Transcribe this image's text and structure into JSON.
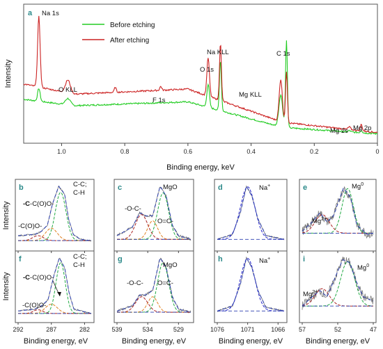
{
  "chart_data": [
    {
      "panel": "a",
      "type": "line",
      "xlabel": "Binding energy, keV",
      "ylabel": "Intensity",
      "xlim": [
        1.12,
        0.0
      ],
      "ylim": [
        0,
        1.0
      ],
      "x_ticks": [
        "1.0",
        "0.8",
        "0.6",
        "0.4",
        "0.2",
        "0"
      ],
      "legend": {
        "placement": "top-left",
        "entries": [
          "Before etching",
          "After etching"
        ]
      },
      "series": [
        {
          "name": "Before etching",
          "color": "#22cc22",
          "baseline": [
            [
              1.12,
              0.3
            ],
            [
              0.96,
              0.25
            ],
            [
              0.6,
              0.28
            ],
            [
              0.3,
              0.08
            ],
            [
              0.0,
              0.03
            ]
          ],
          "peaks": [
            {
              "x": 1.072,
              "h": 0.1,
              "w": 0.004
            },
            {
              "x": 0.98,
              "h": 0.05,
              "w": 0.008
            },
            {
              "x": 0.536,
              "h": 0.18,
              "w": 0.004
            },
            {
              "x": 0.497,
              "h": 0.4,
              "w": 0.003
            },
            {
              "x": 0.306,
              "h": 0.25,
              "w": 0.006
            },
            {
              "x": 0.288,
              "h": 0.68,
              "w": 0.003
            },
            {
              "x": 0.089,
              "h": 0.01,
              "w": 0.004
            },
            {
              "x": 0.051,
              "h": 0.02,
              "w": 0.003
            }
          ]
        },
        {
          "name": "After etching",
          "color": "#cc2222",
          "baseline": [
            [
              1.12,
              0.42
            ],
            [
              0.96,
              0.34
            ],
            [
              0.6,
              0.38
            ],
            [
              0.3,
              0.12
            ],
            [
              0.0,
              0.04
            ]
          ],
          "peaks": [
            {
              "x": 1.072,
              "h": 0.55,
              "w": 0.004
            },
            {
              "x": 0.98,
              "h": 0.1,
              "w": 0.008
            },
            {
              "x": 0.83,
              "h": 0.04,
              "w": 0.003
            },
            {
              "x": 0.686,
              "h": 0.03,
              "w": 0.003
            },
            {
              "x": 0.536,
              "h": 0.3,
              "w": 0.004
            },
            {
              "x": 0.497,
              "h": 0.45,
              "w": 0.003
            },
            {
              "x": 0.306,
              "h": 0.33,
              "w": 0.005
            },
            {
              "x": 0.288,
              "h": 0.4,
              "w": 0.003
            },
            {
              "x": 0.089,
              "h": 0.02,
              "w": 0.004
            },
            {
              "x": 0.051,
              "h": 0.05,
              "w": 0.003
            }
          ]
        }
      ],
      "annotations": [
        "Na 1s",
        "O KLL",
        "F 1s",
        "O 1s",
        "Na KLL",
        "C 1s",
        "Mg KLL",
        "Mg 2s",
        "Mg 2p"
      ]
    },
    {
      "panel": "b",
      "type": "line",
      "xlim": [
        292,
        281
      ],
      "ylim": [
        0,
        1
      ],
      "envelope": [
        [
          292,
          0.18
        ],
        [
          289.5,
          0.2
        ],
        [
          288.5,
          0.25
        ],
        [
          287.6,
          0.35
        ],
        [
          286.8,
          0.7
        ],
        [
          285.9,
          0.98
        ],
        [
          285.0,
          0.85
        ],
        [
          284.4,
          0.45
        ],
        [
          283.7,
          0.2
        ],
        [
          282.6,
          0.12
        ],
        [
          281,
          0.1
        ]
      ],
      "components": [
        {
          "x0": 285.6,
          "h": 0.78,
          "w": 0.8,
          "color": "#22aa44",
          "style": "dashed"
        },
        {
          "x0": 287.0,
          "h": 0.2,
          "w": 0.9,
          "color": "#e08020",
          "style": "dashed"
        },
        {
          "x0": 289.0,
          "h": 0.08,
          "w": 0.8,
          "color": "#aa2222",
          "style": "dashed"
        }
      ],
      "labels": [
        "C-C;",
        "C-H",
        "-C-C(O)O-",
        "-C(O)O-"
      ]
    },
    {
      "panel": "c",
      "type": "line",
      "xlim": [
        539,
        527
      ],
      "ylim": [
        0,
        1
      ],
      "envelope": [
        [
          539,
          0.18
        ],
        [
          536.5,
          0.32
        ],
        [
          535.3,
          0.55
        ],
        [
          534.3,
          0.5
        ],
        [
          533.2,
          0.5
        ],
        [
          532.0,
          0.98
        ],
        [
          531.0,
          0.82
        ],
        [
          530.0,
          0.35
        ],
        [
          529,
          0.18
        ],
        [
          527,
          0.12
        ]
      ],
      "components": [
        {
          "x0": 531.5,
          "h": 0.75,
          "w": 0.9,
          "color": "#22aa44",
          "style": "dashed"
        },
        {
          "x0": 533.2,
          "h": 0.3,
          "w": 0.8,
          "color": "#e08020",
          "style": "dashed"
        },
        {
          "x0": 535.0,
          "h": 0.4,
          "w": 1.0,
          "color": "#aa2222",
          "style": "dashed"
        }
      ],
      "labels": [
        "MgO",
        "-O-C-",
        "O=C-"
      ]
    },
    {
      "panel": "d",
      "type": "line",
      "xlim": [
        1076,
        1065
      ],
      "ylim": [
        0,
        1
      ],
      "envelope": [
        [
          1076,
          0.12
        ],
        [
          1073.5,
          0.2
        ],
        [
          1072.2,
          0.55
        ],
        [
          1071.2,
          0.98
        ],
        [
          1070.3,
          0.82
        ],
        [
          1069.3,
          0.45
        ],
        [
          1068,
          0.18
        ],
        [
          1065,
          0.12
        ]
      ],
      "components": [
        {
          "x0": 1071.0,
          "h": 0.85,
          "w": 1.2,
          "color": "#2222cc",
          "style": "dashed"
        }
      ],
      "labels": [
        "Na+"
      ]
    },
    {
      "panel": "e",
      "type": "line",
      "xlim": [
        57,
        47
      ],
      "ylim": [
        0,
        1
      ],
      "envelope": [
        [
          57,
          0.25
        ],
        [
          55.6,
          0.4
        ],
        [
          54.5,
          0.55
        ],
        [
          53.5,
          0.4
        ],
        [
          52.6,
          0.5
        ],
        [
          51.2,
          0.95
        ],
        [
          50.2,
          0.8
        ],
        [
          49.3,
          0.35
        ],
        [
          47.8,
          0.2
        ],
        [
          47,
          0.22
        ]
      ],
      "components": [
        {
          "x0": 50.6,
          "h": 0.72,
          "w": 0.8,
          "color": "#22aa44",
          "style": "dashed"
        },
        {
          "x0": 54.2,
          "h": 0.3,
          "w": 1.0,
          "color": "#aa2222",
          "style": "dashed"
        }
      ],
      "labels": [
        "Mg0",
        "Mg2+"
      ]
    },
    {
      "panel": "f",
      "type": "line",
      "xlim": [
        292,
        281
      ],
      "ylim": [
        0,
        1
      ],
      "envelope": [
        [
          292,
          0.12
        ],
        [
          289.5,
          0.15
        ],
        [
          288.5,
          0.2
        ],
        [
          287.5,
          0.3
        ],
        [
          286.6,
          0.7
        ],
        [
          285.8,
          0.98
        ],
        [
          285.0,
          0.82
        ],
        [
          284.3,
          0.4
        ],
        [
          283.6,
          0.15
        ],
        [
          281,
          0.08
        ]
      ],
      "components": [
        {
          "x0": 285.6,
          "h": 0.82,
          "w": 0.7,
          "color": "#22aa44",
          "style": "dashed"
        },
        {
          "x0": 287.0,
          "h": 0.15,
          "w": 0.9,
          "color": "#e08020",
          "style": "dashed"
        },
        {
          "x0": 289.0,
          "h": 0.06,
          "w": 0.7,
          "color": "#aa2222",
          "style": "dashed"
        }
      ],
      "labels": [
        "C-C;",
        "C-H",
        "-C-C(O)O-",
        "-C(O)O-"
      ]
    },
    {
      "panel": "g",
      "type": "line",
      "xlim": [
        539,
        527
      ],
      "ylim": [
        0,
        1
      ],
      "envelope": [
        [
          539,
          0.12
        ],
        [
          536.5,
          0.2
        ],
        [
          535.3,
          0.38
        ],
        [
          534.3,
          0.38
        ],
        [
          533.2,
          0.45
        ],
        [
          532.0,
          0.98
        ],
        [
          531.0,
          0.82
        ],
        [
          530.0,
          0.35
        ],
        [
          529,
          0.15
        ],
        [
          527,
          0.1
        ]
      ],
      "components": [
        {
          "x0": 531.5,
          "h": 0.8,
          "w": 0.9,
          "color": "#22aa44",
          "style": "dashed"
        },
        {
          "x0": 533.2,
          "h": 0.25,
          "w": 0.8,
          "color": "#e08020",
          "style": "dashed"
        },
        {
          "x0": 535.0,
          "h": 0.25,
          "w": 1.0,
          "color": "#aa2222",
          "style": "dashed"
        }
      ],
      "labels": [
        "MgO",
        "-O-C-",
        "O=C-"
      ]
    },
    {
      "panel": "h",
      "type": "line",
      "xlim": [
        1076,
        1065
      ],
      "ylim": [
        0,
        1
      ],
      "envelope": [
        [
          1076,
          0.12
        ],
        [
          1073.5,
          0.2
        ],
        [
          1072.2,
          0.55
        ],
        [
          1071.2,
          0.98
        ],
        [
          1070.3,
          0.82
        ],
        [
          1069.3,
          0.45
        ],
        [
          1068,
          0.18
        ],
        [
          1065,
          0.12
        ]
      ],
      "components": [
        {
          "x0": 1071.0,
          "h": 0.85,
          "w": 1.2,
          "color": "#2222cc",
          "style": "dashed"
        }
      ],
      "labels": [
        "Na+"
      ]
    },
    {
      "panel": "i",
      "type": "line",
      "xlim": [
        57,
        47
      ],
      "ylim": [
        0,
        1
      ],
      "envelope": [
        [
          57,
          0.2
        ],
        [
          55.6,
          0.35
        ],
        [
          54.5,
          0.45
        ],
        [
          53.5,
          0.35
        ],
        [
          52.6,
          0.6
        ],
        [
          51.3,
          0.95
        ],
        [
          50.3,
          0.9
        ],
        [
          49.4,
          0.6
        ],
        [
          48.4,
          0.35
        ],
        [
          47,
          0.28
        ]
      ],
      "components": [
        {
          "x0": 50.6,
          "h": 0.72,
          "w": 1.0,
          "color": "#22aa44",
          "style": "dashed"
        },
        {
          "x0": 54.2,
          "h": 0.28,
          "w": 1.0,
          "color": "#aa2222",
          "style": "dashed"
        }
      ],
      "labels": [
        "Mg0",
        "Mg2+"
      ]
    }
  ],
  "labels": {
    "panel_a": "a",
    "ylabel": "Intensity",
    "xlabel_top": "Binding energy, keV",
    "xlabel_bottom": "Binding energy, eV",
    "legend_before": "Before etching",
    "legend_after": "After etching",
    "ann_na1s": "Na 1s",
    "ann_okll": "O KLL",
    "ann_f1s": "F 1s",
    "ann_o1s": "O 1s",
    "ann_nakll": "Na KLL",
    "ann_c1s": "C 1s",
    "ann_mgkll": "Mg KLL",
    "ann_mg2s": "Mg 2s",
    "ann_mg2p": "Mg 2p",
    "a_ticks": [
      "1.0",
      "0.8",
      "0.6",
      "0.4",
      "0.2",
      "0"
    ],
    "c1s_ticks": [
      "292",
      "287",
      "282"
    ],
    "o1s_ticks": [
      "539",
      "534",
      "529"
    ],
    "na_ticks": [
      "1076",
      "1071",
      "1066"
    ],
    "mg_ticks": [
      "57",
      "52",
      "47"
    ],
    "tag_b": "b",
    "tag_c": "c",
    "tag_d": "d",
    "tag_e": "e",
    "tag_f": "f",
    "tag_g": "g",
    "tag_h": "h",
    "tag_i": "i",
    "cc1": "C-C;",
    "cc2": "C-H",
    "ccoo_bold": "-C",
    "ccoo_rest": "-C(O)O-",
    "coo": "-C(O)O-",
    "mgo": "MgO",
    "oc": "-O-C-",
    "oeq": "O=C-",
    "na_base": "Na",
    "na_sup": "+",
    "mg_base": "Mg",
    "mg0_sup": "0",
    "mg2_sup": "2+"
  },
  "colors": {
    "before": "#22cc22",
    "after": "#cc2222",
    "envelope": "#2b3fb0",
    "data": "#777777",
    "tag": "#2c8a8a"
  }
}
